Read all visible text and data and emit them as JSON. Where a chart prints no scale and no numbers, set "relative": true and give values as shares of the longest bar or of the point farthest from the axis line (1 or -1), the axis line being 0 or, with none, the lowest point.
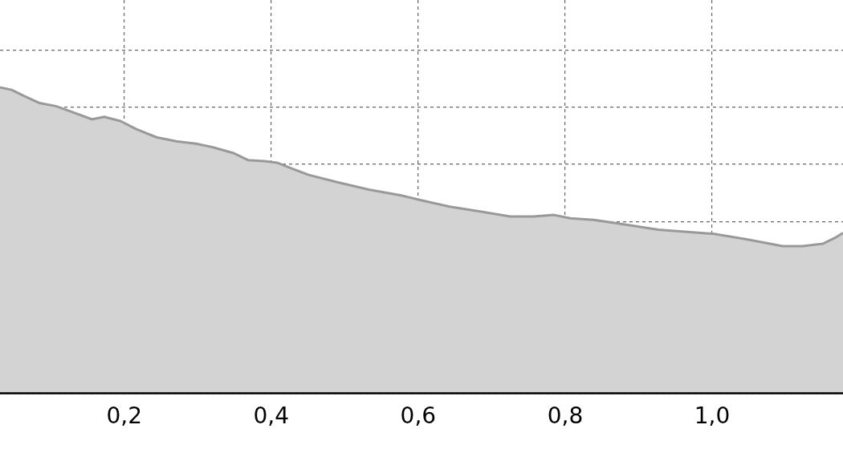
{
  "chart_data": {
    "type": "area",
    "relative": true,
    "tick_labels": "x",
    "grid": true,
    "line_style": "solid",
    "xlim": [
      0.031,
      1.178
    ],
    "xticks": [
      {
        "value": 0.2,
        "label": "0,2"
      },
      {
        "value": 0.4,
        "label": "0,4"
      },
      {
        "value": 0.6,
        "label": "0,6"
      },
      {
        "value": 0.8,
        "label": "0,8"
      },
      {
        "value": 1.0,
        "label": "1,0"
      }
    ],
    "series": [
      {
        "color": "#999999",
        "x": [
          0.031,
          0.047,
          0.063,
          0.085,
          0.107,
          0.129,
          0.156,
          0.173,
          0.195,
          0.216,
          0.244,
          0.271,
          0.298,
          0.32,
          0.348,
          0.369,
          0.391,
          0.408,
          0.43,
          0.451,
          0.49,
          0.533,
          0.577,
          0.604,
          0.643,
          0.686,
          0.725,
          0.757,
          0.785,
          0.807,
          0.839,
          0.883,
          0.927,
          0.97,
          1.003,
          1.047,
          1.096,
          1.123,
          1.151,
          1.167,
          1.178
        ],
        "values": [
          1,
          0.992,
          0.973,
          0.949,
          0.939,
          0.92,
          0.896,
          0.904,
          0.89,
          0.864,
          0.837,
          0.824,
          0.816,
          0.805,
          0.786,
          0.762,
          0.759,
          0.754,
          0.733,
          0.714,
          0.69,
          0.666,
          0.647,
          0.631,
          0.61,
          0.594,
          0.578,
          0.578,
          0.583,
          0.572,
          0.567,
          0.551,
          0.535,
          0.527,
          0.521,
          0.503,
          0.481,
          0.481,
          0.489,
          0.508,
          0.524
        ]
      }
    ]
  }
}
